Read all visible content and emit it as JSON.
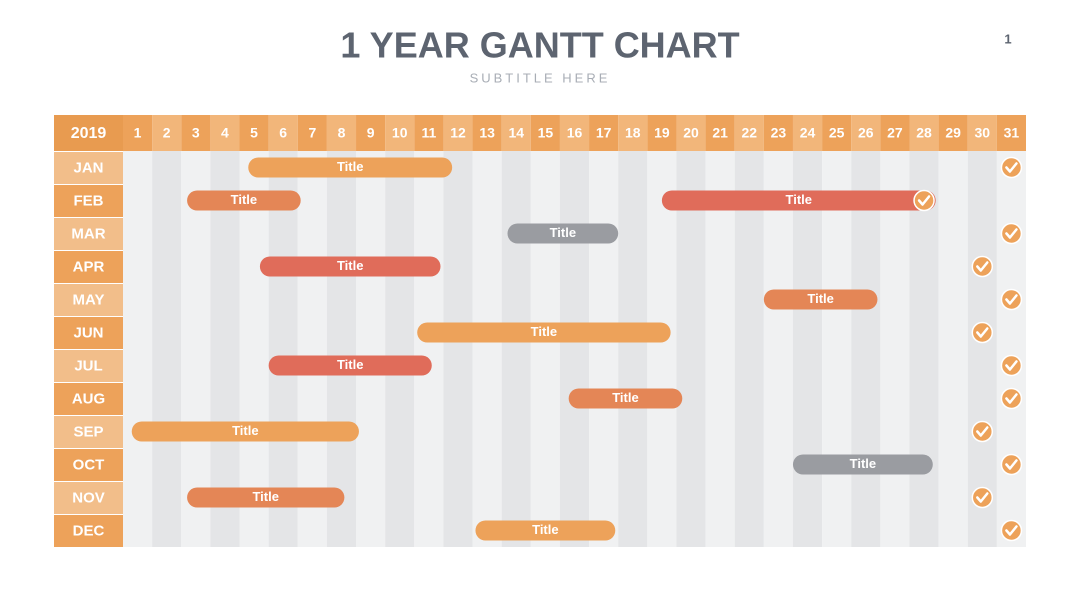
{
  "chart_data": {
    "type": "gantt",
    "title": "1 YEAR GANTT CHART",
    "subtitle": "SUBTITLE HERE",
    "page_number": "1",
    "corner": "2019",
    "xlim": [
      0.5,
      31.5
    ],
    "xticks": [
      1,
      2,
      3,
      4,
      5,
      6,
      7,
      8,
      9,
      10,
      11,
      12,
      13,
      14,
      15,
      16,
      17,
      18,
      19,
      20,
      21,
      22,
      23,
      24,
      25,
      26,
      27,
      28,
      29,
      30,
      31
    ],
    "categories": [
      "JAN",
      "FEB",
      "MAR",
      "APR",
      "MAY",
      "JUN",
      "JUL",
      "AUG",
      "SEP",
      "OCT",
      "NOV",
      "DEC"
    ],
    "checks": [
      31,
      28,
      31,
      30,
      31,
      30,
      31,
      31,
      30,
      31,
      30,
      31
    ],
    "check_color": "#eda25a",
    "bars": [
      {
        "category": "JAN",
        "label": "Title",
        "start": 4.8,
        "end": 11.8,
        "color": "#eda25a"
      },
      {
        "category": "FEB",
        "label": "Title",
        "start": 2.7,
        "end": 6.6,
        "color": "#e48656"
      },
      {
        "category": "FEB",
        "label": "Title",
        "start": 19.0,
        "end": 28.4,
        "color": "#e06c5a"
      },
      {
        "category": "MAR",
        "label": "Title",
        "start": 13.7,
        "end": 17.5,
        "color": "#9a9ca1"
      },
      {
        "category": "APR",
        "label": "Title",
        "start": 5.2,
        "end": 11.4,
        "color": "#e06c5a"
      },
      {
        "category": "MAY",
        "label": "Title",
        "start": 22.5,
        "end": 26.4,
        "color": "#e48656"
      },
      {
        "category": "JUN",
        "label": "Title",
        "start": 10.6,
        "end": 19.3,
        "color": "#eda25a"
      },
      {
        "category": "JUL",
        "label": "Title",
        "start": 5.5,
        "end": 11.1,
        "color": "#e06c5a"
      },
      {
        "category": "AUG",
        "label": "Title",
        "start": 15.8,
        "end": 19.7,
        "color": "#e48656"
      },
      {
        "category": "SEP",
        "label": "Title",
        "start": 0.8,
        "end": 8.6,
        "color": "#eda25a"
      },
      {
        "category": "OCT",
        "label": "Title",
        "start": 23.5,
        "end": 28.3,
        "color": "#9a9ca1"
      },
      {
        "category": "NOV",
        "label": "Title",
        "start": 2.7,
        "end": 8.1,
        "color": "#e48656"
      },
      {
        "category": "DEC",
        "label": "Title",
        "start": 12.6,
        "end": 17.4,
        "color": "#eda25a"
      }
    ]
  }
}
